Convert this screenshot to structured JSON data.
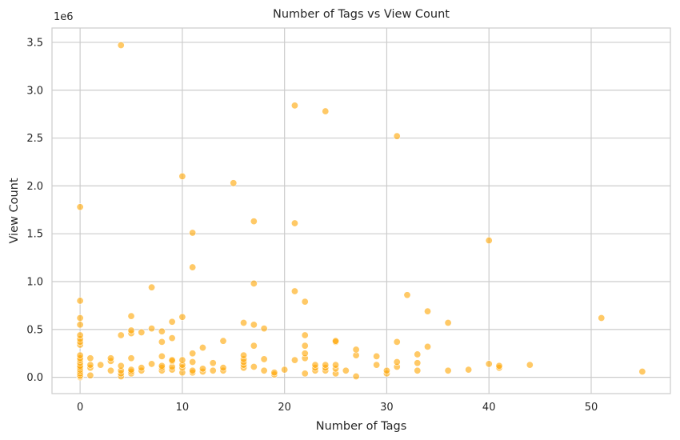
{
  "chart_data": {
    "type": "scatter",
    "title": "Number of Tags vs View Count",
    "xlabel": "Number of Tags",
    "ylabel": "View Count",
    "y_offset_label": "1e6",
    "xlim": [
      -2.75,
      57.75
    ],
    "ylim": [
      -0.17,
      3.65
    ],
    "xticks": [
      0,
      10,
      20,
      30,
      40,
      50
    ],
    "yticks": [
      0.0,
      0.5,
      1.0,
      1.5,
      2.0,
      2.5,
      3.0,
      3.5
    ],
    "ytick_labels": [
      "0.0",
      "0.5",
      "1.0",
      "1.5",
      "2.0",
      "2.5",
      "3.0",
      "3.5"
    ],
    "xtick_labels": [
      "0",
      "10",
      "20",
      "30",
      "40",
      "50"
    ],
    "grid": true,
    "marker_color": "#FFA500",
    "y_units_note": "values in units of 1e6",
    "points": [
      [
        0,
        0.0
      ],
      [
        0,
        0.01
      ],
      [
        0,
        0.02
      ],
      [
        0,
        0.04
      ],
      [
        0,
        0.06
      ],
      [
        0,
        0.08
      ],
      [
        0,
        0.1
      ],
      [
        0,
        0.12
      ],
      [
        0,
        0.15
      ],
      [
        0,
        0.18
      ],
      [
        0,
        0.2
      ],
      [
        0,
        0.23
      ],
      [
        0,
        0.34
      ],
      [
        0,
        0.37
      ],
      [
        0,
        0.4
      ],
      [
        0,
        0.44
      ],
      [
        0,
        0.55
      ],
      [
        0,
        0.62
      ],
      [
        0,
        0.8
      ],
      [
        0,
        1.78
      ],
      [
        1,
        0.02
      ],
      [
        1,
        0.1
      ],
      [
        1,
        0.13
      ],
      [
        1,
        0.2
      ],
      [
        2,
        0.13
      ],
      [
        3,
        0.07
      ],
      [
        3,
        0.17
      ],
      [
        3,
        0.2
      ],
      [
        4,
        0.01
      ],
      [
        4,
        0.04
      ],
      [
        4,
        0.07
      ],
      [
        4,
        0.12
      ],
      [
        4,
        0.44
      ],
      [
        4,
        3.47
      ],
      [
        5,
        0.04
      ],
      [
        5,
        0.06
      ],
      [
        5,
        0.08
      ],
      [
        5,
        0.2
      ],
      [
        5,
        0.46
      ],
      [
        5,
        0.49
      ],
      [
        5,
        0.64
      ],
      [
        6,
        0.07
      ],
      [
        6,
        0.1
      ],
      [
        6,
        0.47
      ],
      [
        7,
        0.14
      ],
      [
        7,
        0.51
      ],
      [
        7,
        0.94
      ],
      [
        8,
        0.07
      ],
      [
        8,
        0.1
      ],
      [
        8,
        0.12
      ],
      [
        8,
        0.22
      ],
      [
        8,
        0.37
      ],
      [
        8,
        0.48
      ],
      [
        9,
        0.08
      ],
      [
        9,
        0.11
      ],
      [
        9,
        0.17
      ],
      [
        9,
        0.18
      ],
      [
        9,
        0.41
      ],
      [
        9,
        0.58
      ],
      [
        10,
        0.05
      ],
      [
        10,
        0.1
      ],
      [
        10,
        0.13
      ],
      [
        10,
        0.18
      ],
      [
        10,
        0.63
      ],
      [
        10,
        2.1
      ],
      [
        11,
        0.05
      ],
      [
        11,
        0.07
      ],
      [
        11,
        0.16
      ],
      [
        11,
        0.25
      ],
      [
        11,
        1.15
      ],
      [
        11,
        1.51
      ],
      [
        12,
        0.06
      ],
      [
        12,
        0.09
      ],
      [
        12,
        0.31
      ],
      [
        13,
        0.07
      ],
      [
        13,
        0.15
      ],
      [
        14,
        0.07
      ],
      [
        14,
        0.1
      ],
      [
        14,
        0.38
      ],
      [
        15,
        2.03
      ],
      [
        16,
        0.1
      ],
      [
        16,
        0.13
      ],
      [
        16,
        0.16
      ],
      [
        16,
        0.19
      ],
      [
        16,
        0.23
      ],
      [
        16,
        0.57
      ],
      [
        17,
        0.11
      ],
      [
        17,
        0.33
      ],
      [
        17,
        0.55
      ],
      [
        17,
        0.98
      ],
      [
        17,
        1.63
      ],
      [
        18,
        0.07
      ],
      [
        18,
        0.19
      ],
      [
        18,
        0.51
      ],
      [
        19,
        0.03
      ],
      [
        19,
        0.05
      ],
      [
        20,
        0.08
      ],
      [
        21,
        0.18
      ],
      [
        21,
        0.9
      ],
      [
        21,
        1.61
      ],
      [
        21,
        2.84
      ],
      [
        22,
        0.04
      ],
      [
        22,
        0.2
      ],
      [
        22,
        0.25
      ],
      [
        22,
        0.33
      ],
      [
        22,
        0.44
      ],
      [
        22,
        0.79
      ],
      [
        23,
        0.07
      ],
      [
        23,
        0.1
      ],
      [
        23,
        0.13
      ],
      [
        24,
        0.07
      ],
      [
        24,
        0.1
      ],
      [
        24,
        0.13
      ],
      [
        24,
        2.78
      ],
      [
        25,
        0.04
      ],
      [
        25,
        0.09
      ],
      [
        25,
        0.13
      ],
      [
        25,
        0.37
      ],
      [
        25,
        0.38
      ],
      [
        26,
        0.07
      ],
      [
        27,
        0.01
      ],
      [
        27,
        0.23
      ],
      [
        27,
        0.29
      ],
      [
        29,
        0.13
      ],
      [
        29,
        0.22
      ],
      [
        30,
        0.04
      ],
      [
        30,
        0.07
      ],
      [
        31,
        0.11
      ],
      [
        31,
        0.16
      ],
      [
        31,
        0.37
      ],
      [
        31,
        2.52
      ],
      [
        32,
        0.86
      ],
      [
        33,
        0.07
      ],
      [
        33,
        0.15
      ],
      [
        33,
        0.24
      ],
      [
        34,
        0.32
      ],
      [
        34,
        0.69
      ],
      [
        36,
        0.07
      ],
      [
        36,
        0.57
      ],
      [
        38,
        0.08
      ],
      [
        40,
        0.14
      ],
      [
        40,
        1.43
      ],
      [
        41,
        0.1
      ],
      [
        41,
        0.12
      ],
      [
        44,
        0.13
      ],
      [
        51,
        0.62
      ],
      [
        55,
        0.06
      ]
    ]
  }
}
